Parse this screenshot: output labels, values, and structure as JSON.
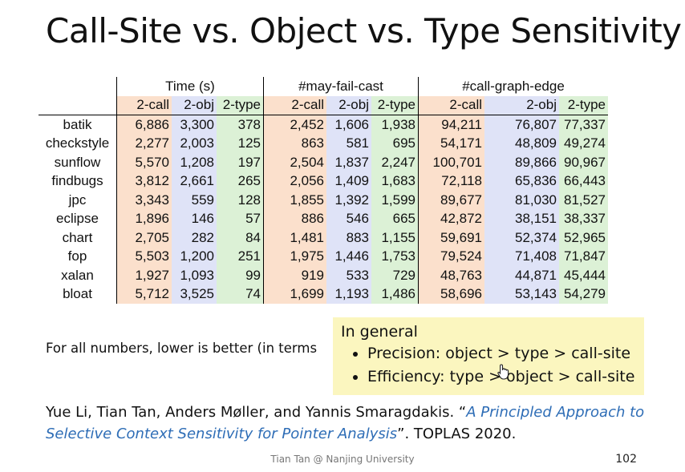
{
  "title": "Call-Site vs. Object vs. Type Sensitivity",
  "table": {
    "groups": [
      "Time (s)",
      "#may-fail-cast",
      "#call-graph-edge"
    ],
    "subheaders": [
      "2-call",
      "2-obj",
      "2-type",
      "2-call",
      "2-obj",
      "2-type",
      "2-call",
      "2-obj",
      "2-type"
    ],
    "rows": [
      {
        "name": "batik",
        "values": [
          "6,886",
          "3,300",
          "378",
          "2,452",
          "1,606",
          "1,938",
          "94,211",
          "76,807",
          "77,337"
        ]
      },
      {
        "name": "checkstyle",
        "values": [
          "2,277",
          "2,003",
          "125",
          "863",
          "581",
          "695",
          "54,171",
          "48,809",
          "49,274"
        ]
      },
      {
        "name": "sunflow",
        "values": [
          "5,570",
          "1,208",
          "197",
          "2,504",
          "1,837",
          "2,247",
          "100,701",
          "89,866",
          "90,967"
        ]
      },
      {
        "name": "findbugs",
        "values": [
          "3,812",
          "2,661",
          "265",
          "2,056",
          "1,409",
          "1,683",
          "72,118",
          "65,836",
          "66,443"
        ]
      },
      {
        "name": "jpc",
        "values": [
          "3,343",
          "559",
          "128",
          "1,855",
          "1,392",
          "1,599",
          "89,677",
          "81,030",
          "81,527"
        ]
      },
      {
        "name": "eclipse",
        "values": [
          "1,896",
          "146",
          "57",
          "886",
          "546",
          "665",
          "42,872",
          "38,151",
          "38,337"
        ]
      },
      {
        "name": "chart",
        "values": [
          "2,705",
          "282",
          "84",
          "1,481",
          "883",
          "1,155",
          "59,691",
          "52,374",
          "52,965"
        ]
      },
      {
        "name": "fop",
        "values": [
          "5,503",
          "1,200",
          "251",
          "1,975",
          "1,446",
          "1,753",
          "79,524",
          "71,408",
          "71,847"
        ]
      },
      {
        "name": "xalan",
        "values": [
          "1,927",
          "1,093",
          "99",
          "919",
          "533",
          "729",
          "48,763",
          "44,871",
          "45,444"
        ]
      },
      {
        "name": "bloat",
        "values": [
          "5,712",
          "3,525",
          "74",
          "1,699",
          "1,193",
          "1,486",
          "58,696",
          "53,143",
          "54,279"
        ]
      }
    ]
  },
  "footnote": "For all numbers, lower is better (in terms",
  "callout": {
    "heading": "In general",
    "bullets": [
      "Precision: object > type > call-site",
      "Efficiency: type > object > call-site"
    ]
  },
  "citation": {
    "authors": "Yue Li, Tian Tan, Anders Møller, and Yannis Smaragdakis. “",
    "paper_title": "A Principled Approach to Selective Context Sensitivity for Pointer Analysis",
    "venue": "”. TOPLAS 2020."
  },
  "footer": "Tian Tan @ Nanjing University",
  "slide_number": "102",
  "colors": {
    "2-call": "#fbe0cc",
    "2-obj": "#dfe3f7",
    "2-type": "#dcf1d6",
    "link": "#2e6db6",
    "callout_bg": "#fbf6bf"
  },
  "icons": {
    "cursor": "hand-pointer-icon"
  }
}
